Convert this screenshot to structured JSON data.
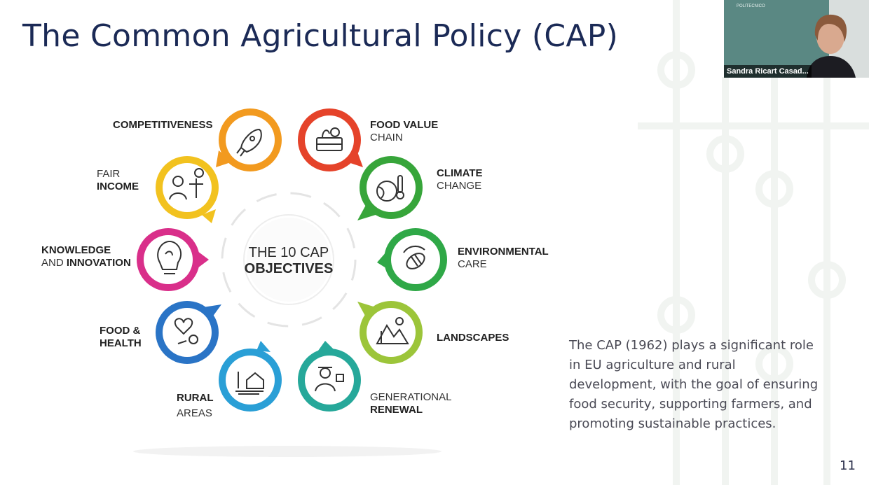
{
  "slide": {
    "title": "The Common Agricultural Policy (CAP)",
    "page_number": "11",
    "body_text": "The CAP (1962) plays a significant role in EU agriculture and rural development, with the goal of ensuring food security, supporting farmers, and promoting sustainable practices."
  },
  "diagram": {
    "center_line1": "THE 10 CAP",
    "center_line2": "OBJECTIVES",
    "objectives": [
      {
        "light_pre": "",
        "bold": "COMPETITIVENESS",
        "light_post": "",
        "icon": "rocket-icon",
        "color": "#f29a1f"
      },
      {
        "light_pre": "",
        "bold": "FOOD VALUE",
        "light_post": "CHAIN",
        "icon": "food-basket-icon",
        "color": "#e5432a"
      },
      {
        "light_pre": "",
        "bold": "CLIMATE",
        "light_post": "CHANGE",
        "icon": "globe-thermometer-icon",
        "color": "#37a53a"
      },
      {
        "light_pre": "",
        "bold": "ENVIRONMENTAL",
        "light_post": "CARE",
        "icon": "bee-icon",
        "color": "#2fa847"
      },
      {
        "light_pre": "",
        "bold": "LANDSCAPES",
        "light_post": "",
        "icon": "landscape-icon",
        "color": "#9cc53a"
      },
      {
        "light_pre": "",
        "bold": "RENEWAL",
        "light_post": "GENERATIONAL",
        "icon": "young-farmer-icon",
        "color": "#26a89a"
      },
      {
        "light_pre": "",
        "bold": "RURAL",
        "light_post": "AREAS",
        "icon": "rural-house-icon",
        "color": "#2a9fd6"
      },
      {
        "light_pre": "",
        "bold": "FOOD &",
        "light_post": "HEALTH",
        "icon": "food-health-icon",
        "color": "#2a74c6"
      },
      {
        "light_pre": "AND",
        "bold": "KNOWLEDGE",
        "light_post": "INNOVATION",
        "icon": "lightbulb-brain-icon",
        "color": "#d92f8a"
      },
      {
        "light_pre": "FAIR",
        "bold": "INCOME",
        "light_post": "",
        "icon": "farmer-scales-icon",
        "color": "#f2c21f"
      }
    ]
  },
  "video": {
    "participant_name": "Sandra Ricart Casad...",
    "logo_text": "POLITECNICO"
  }
}
